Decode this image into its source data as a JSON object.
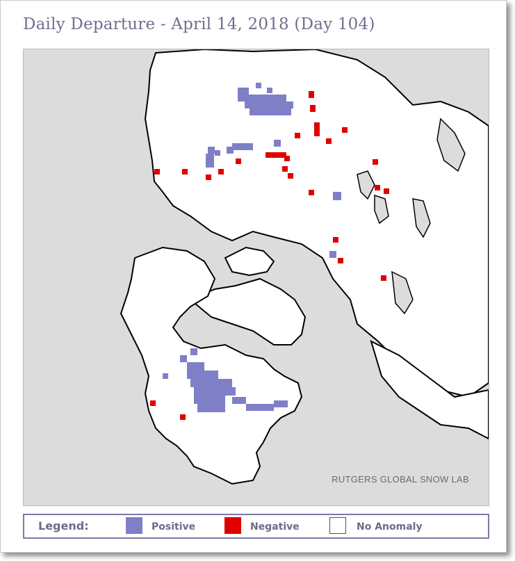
{
  "title": "Daily Departure - April 14, 2018 (Day 104)",
  "credit": "RUTGERS GLOBAL SNOW LAB",
  "legend": {
    "title": "Legend:",
    "positive": "Positive",
    "negative": "Negative",
    "no_anomaly": "No Anomaly"
  },
  "colors": {
    "background_ocean": "#dcdcdc",
    "land": "#ffffff",
    "positive": "#7f7fc8",
    "negative": "#e00000",
    "title_text": "#6f6f8f",
    "legend_text": "#6b6b8b"
  }
}
